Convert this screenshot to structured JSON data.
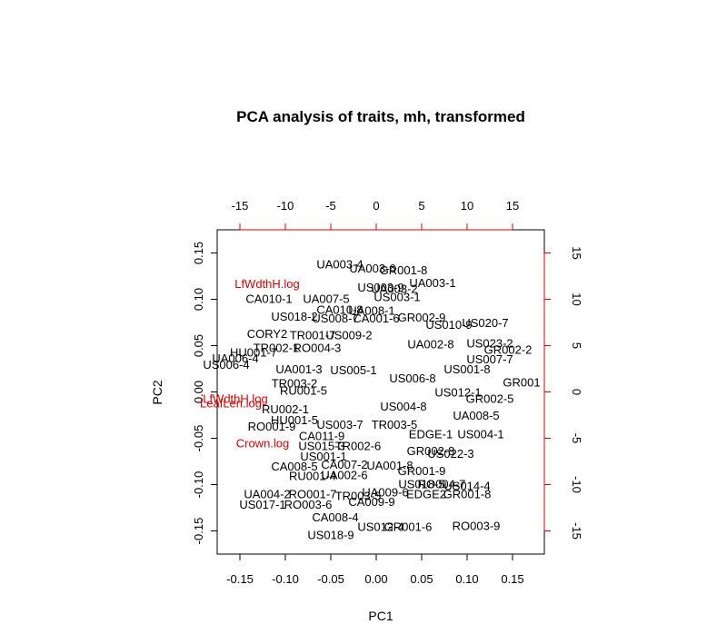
{
  "chart_data": {
    "type": "scatter",
    "title": "PCA analysis of traits, mh, transformed",
    "xlabel": "PC1",
    "ylabel": "PC2",
    "xlim": [
      -0.175,
      0.185
    ],
    "ylim": [
      -0.175,
      0.175
    ],
    "xticks": [
      "-0.15",
      "-0.10",
      "-0.05",
      "0.00",
      "0.05",
      "0.10",
      "0.15"
    ],
    "xtick_values": [
      -0.15,
      -0.1,
      -0.05,
      0.0,
      0.05,
      0.1,
      0.15
    ],
    "yticks": [
      "-0.15",
      "-0.10",
      "-0.05",
      "0.00",
      "0.05",
      "0.10",
      "0.15"
    ],
    "ytick_values": [
      -0.15,
      -0.1,
      -0.05,
      0.0,
      0.05,
      0.1,
      0.15
    ],
    "top_axis": {
      "lim": [
        -17.5,
        18.5
      ],
      "ticks": [
        "-15",
        "-10",
        "-5",
        "0",
        "5",
        "10",
        "15"
      ],
      "tick_values": [
        -15,
        -10,
        -5,
        0,
        5,
        10,
        15
      ],
      "color": "#e00000"
    },
    "right_axis": {
      "lim": [
        -17.5,
        17.5
      ],
      "ticks": [
        "-15",
        "-10",
        "-5",
        "0",
        "5",
        "10",
        "15"
      ],
      "tick_values": [
        -15,
        -10,
        -5,
        0,
        5,
        10,
        15
      ],
      "color": "#e00000"
    },
    "points": [
      {
        "label": "UA003-4",
        "x": -0.04,
        "y": 0.138
      },
      {
        "label": "UA003-6",
        "x": -0.004,
        "y": 0.134
      },
      {
        "label": "GR001-8",
        "x": 0.03,
        "y": 0.132
      },
      {
        "label": "UA003-1",
        "x": 0.062,
        "y": 0.118
      },
      {
        "label": "LfWdthH.log",
        "x": -0.12,
        "y": 0.117,
        "loading": true
      },
      {
        "label": "US003-9",
        "x": 0.005,
        "y": 0.113
      },
      {
        "label": "UA003-2",
        "x": 0.02,
        "y": 0.112
      },
      {
        "label": "CA010-1",
        "x": -0.118,
        "y": 0.101
      },
      {
        "label": "UA007-5",
        "x": -0.055,
        "y": 0.101
      },
      {
        "label": "US003-1",
        "x": 0.023,
        "y": 0.103
      },
      {
        "label": "CA010-8",
        "x": -0.04,
        "y": 0.089
      },
      {
        "label": "UA008-1",
        "x": -0.005,
        "y": 0.088
      },
      {
        "label": "US018-2",
        "x": -0.09,
        "y": 0.082
      },
      {
        "label": "US008-7",
        "x": -0.045,
        "y": 0.08
      },
      {
        "label": "CA001-6",
        "x": 0.0,
        "y": 0.08
      },
      {
        "label": "GR002-9",
        "x": 0.05,
        "y": 0.081
      },
      {
        "label": "US020-7",
        "x": 0.12,
        "y": 0.075
      },
      {
        "label": "US010-9",
        "x": 0.08,
        "y": 0.073
      },
      {
        "label": "CORY2",
        "x": -0.12,
        "y": 0.063
      },
      {
        "label": "TR001-7",
        "x": -0.07,
        "y": 0.062
      },
      {
        "label": "US009-2",
        "x": -0.03,
        "y": 0.062
      },
      {
        "label": "UA002-8",
        "x": 0.06,
        "y": 0.052
      },
      {
        "label": "US023-2",
        "x": 0.125,
        "y": 0.053
      },
      {
        "label": "TR002-1",
        "x": -0.11,
        "y": 0.048
      },
      {
        "label": "RO004-3",
        "x": -0.065,
        "y": 0.048
      },
      {
        "label": "GR002-2",
        "x": 0.145,
        "y": 0.046
      },
      {
        "label": "HU001-7",
        "x": -0.135,
        "y": 0.043
      },
      {
        "label": "US007-7",
        "x": 0.125,
        "y": 0.036
      },
      {
        "label": "UA006-4",
        "x": -0.155,
        "y": 0.037
      },
      {
        "label": "US006-4",
        "x": -0.165,
        "y": 0.03
      },
      {
        "label": "UA001-3",
        "x": -0.085,
        "y": 0.025
      },
      {
        "label": "US005-1",
        "x": -0.025,
        "y": 0.024
      },
      {
        "label": "US001-8",
        "x": 0.1,
        "y": 0.025
      },
      {
        "label": "GR001",
        "x": 0.16,
        "y": 0.011
      },
      {
        "label": "US006-8",
        "x": 0.04,
        "y": 0.015
      },
      {
        "label": "TR003-2",
        "x": -0.09,
        "y": 0.01
      },
      {
        "label": "RU001-5",
        "x": -0.08,
        "y": 0.002
      },
      {
        "label": "US012-1",
        "x": 0.09,
        "y": 0.0
      },
      {
        "label": "GR002-5",
        "x": 0.125,
        "y": -0.007
      },
      {
        "label": "LfWdthH.log",
        "x": -0.155,
        "y": -0.007,
        "loading": true
      },
      {
        "label": "LeafLen.log",
        "x": -0.16,
        "y": -0.012,
        "loading": true
      },
      {
        "label": "RU002-1",
        "x": -0.1,
        "y": -0.018
      },
      {
        "label": "US004-8",
        "x": 0.03,
        "y": -0.015
      },
      {
        "label": "UA008-5",
        "x": 0.11,
        "y": -0.025
      },
      {
        "label": "HU001-5",
        "x": -0.09,
        "y": -0.03
      },
      {
        "label": "RO001-9",
        "x": -0.115,
        "y": -0.037
      },
      {
        "label": "US003-7",
        "x": -0.04,
        "y": -0.035
      },
      {
        "label": "TR003-5",
        "x": 0.02,
        "y": -0.035
      },
      {
        "label": "CA011-9",
        "x": -0.06,
        "y": -0.047
      },
      {
        "label": "EDGE-1",
        "x": 0.06,
        "y": -0.045
      },
      {
        "label": "US004-1",
        "x": 0.115,
        "y": -0.045
      },
      {
        "label": "Crown.log",
        "x": -0.125,
        "y": -0.055,
        "loading": true
      },
      {
        "label": "US015-3",
        "x": -0.06,
        "y": -0.058
      },
      {
        "label": "TR002-6",
        "x": -0.02,
        "y": -0.058
      },
      {
        "label": "GR002-8",
        "x": 0.06,
        "y": -0.063
      },
      {
        "label": "US022-3",
        "x": 0.082,
        "y": -0.066
      },
      {
        "label": "US001-1",
        "x": -0.058,
        "y": -0.069
      },
      {
        "label": "CA008-5",
        "x": -0.09,
        "y": -0.08
      },
      {
        "label": "CA007-2",
        "x": -0.035,
        "y": -0.078
      },
      {
        "label": "UA001-8",
        "x": 0.015,
        "y": -0.079
      },
      {
        "label": "GR001-9",
        "x": 0.05,
        "y": -0.085
      },
      {
        "label": "RU001-4",
        "x": -0.07,
        "y": -0.09
      },
      {
        "label": "UA002-6",
        "x": -0.035,
        "y": -0.089
      },
      {
        "label": "US018-5",
        "x": 0.05,
        "y": -0.099
      },
      {
        "label": "RO004-7",
        "x": 0.072,
        "y": -0.099
      },
      {
        "label": "US014-4",
        "x": 0.1,
        "y": -0.101
      },
      {
        "label": "UA004-2",
        "x": -0.12,
        "y": -0.11
      },
      {
        "label": "RO001-7",
        "x": -0.07,
        "y": -0.11
      },
      {
        "label": "TR003-5",
        "x": -0.02,
        "y": -0.112
      },
      {
        "label": "UA009-6",
        "x": 0.01,
        "y": -0.108
      },
      {
        "label": "EDGE2",
        "x": 0.055,
        "y": -0.11
      },
      {
        "label": "GR001-8",
        "x": 0.1,
        "y": -0.11
      },
      {
        "label": "US017-1",
        "x": -0.125,
        "y": -0.121
      },
      {
        "label": "RO003-6",
        "x": -0.075,
        "y": -0.121
      },
      {
        "label": "CA009-9",
        "x": -0.005,
        "y": -0.118
      },
      {
        "label": "CA008-4",
        "x": -0.045,
        "y": -0.135
      },
      {
        "label": "US012-4",
        "x": 0.005,
        "y": -0.145
      },
      {
        "label": "GR001-6",
        "x": 0.035,
        "y": -0.145
      },
      {
        "label": "RO003-9",
        "x": 0.11,
        "y": -0.144
      },
      {
        "label": "US018-9",
        "x": -0.05,
        "y": -0.154
      }
    ]
  }
}
